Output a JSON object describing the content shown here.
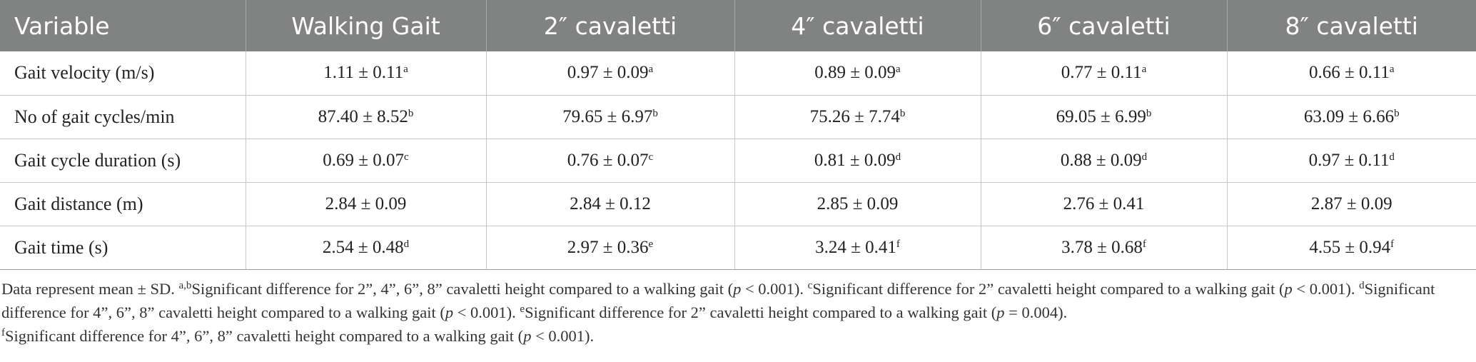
{
  "table": {
    "columns": [
      "Variable",
      "Walking Gait",
      "2″ cavaletti",
      "4″ cavaletti",
      "6″ cavaletti",
      "8″ cavaletti"
    ],
    "rows": [
      {
        "label": "Gait velocity (m/s)",
        "cells": [
          {
            "value": "1.11 ± 0.11",
            "sup": "a"
          },
          {
            "value": "0.97 ± 0.09",
            "sup": "a"
          },
          {
            "value": "0.89 ± 0.09",
            "sup": "a"
          },
          {
            "value": "0.77 ± 0.11",
            "sup": "a"
          },
          {
            "value": "0.66 ± 0.11",
            "sup": "a"
          }
        ]
      },
      {
        "label": "No of gait cycles/min",
        "cells": [
          {
            "value": "87.40 ± 8.52",
            "sup": "b"
          },
          {
            "value": "79.65 ± 6.97",
            "sup": "b"
          },
          {
            "value": "75.26 ± 7.74",
            "sup": "b"
          },
          {
            "value": "69.05 ± 6.99",
            "sup": "b"
          },
          {
            "value": "63.09 ± 6.66",
            "sup": "b"
          }
        ]
      },
      {
        "label": "Gait cycle duration (s)",
        "cells": [
          {
            "value": "0.69 ± 0.07",
            "sup": "c"
          },
          {
            "value": "0.76 ± 0.07",
            "sup": "c"
          },
          {
            "value": "0.81 ± 0.09",
            "sup": "d"
          },
          {
            "value": "0.88 ± 0.09",
            "sup": "d"
          },
          {
            "value": "0.97 ± 0.11",
            "sup": "d"
          }
        ]
      },
      {
        "label": "Gait distance (m)",
        "cells": [
          {
            "value": "2.84 ± 0.09",
            "sup": ""
          },
          {
            "value": "2.84 ± 0.12",
            "sup": ""
          },
          {
            "value": "2.85 ± 0.09",
            "sup": ""
          },
          {
            "value": "2.76 ± 0.41",
            "sup": ""
          },
          {
            "value": "2.87 ± 0.09",
            "sup": ""
          }
        ]
      },
      {
        "label": "Gait time (s)",
        "cells": [
          {
            "value": "2.54 ± 0.48",
            "sup": "d"
          },
          {
            "value": "2.97 ± 0.36",
            "sup": "e"
          },
          {
            "value": "3.24 ± 0.41",
            "sup": "f"
          },
          {
            "value": "3.78 ± 0.68",
            "sup": "f"
          },
          {
            "value": "4.55 ± 0.94",
            "sup": "f"
          }
        ]
      }
    ]
  },
  "footnote": {
    "intro": "Data represent mean ± SD. ",
    "notes": [
      {
        "sup": "a,b",
        "text": "Significant difference for 2”, 4”, 6”, 8” cavaletti height compared to a walking gait (",
        "p": "p",
        "rel": " < 0.001). "
      },
      {
        "sup": "c",
        "text": "Significant difference for 2” cavaletti height compared to a walking gait (",
        "p": "p",
        "rel": " < 0.001). "
      },
      {
        "sup": "d",
        "text": "Significant difference for 4”, 6”, 8” cavaletti height compared to a walking gait (",
        "p": "p",
        "rel": " < 0.001). "
      },
      {
        "sup": "e",
        "text": "Significant difference for 2” cavaletti height compared to a walking gait (",
        "p": "p",
        "rel": " = 0.004)."
      },
      {
        "sup": "f",
        "text": "Significant difference for 4”, 6”, 8” cavaletti height compared to a walking gait (",
        "p": "p",
        "rel": " < 0.001)."
      }
    ]
  },
  "colors": {
    "header_bg": "#818282",
    "header_text": "#ffffff",
    "grid": "#c6c6c6"
  }
}
